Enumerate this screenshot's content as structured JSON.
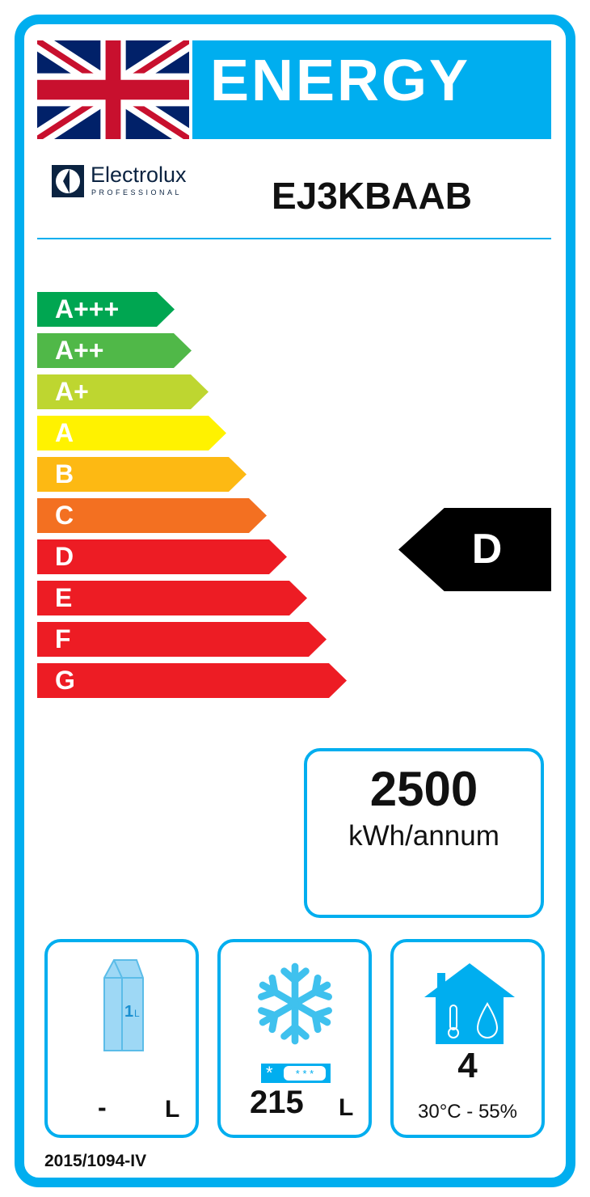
{
  "header": {
    "title": "ENERGY",
    "flag": "uk-flag-icon"
  },
  "brand": {
    "name": "Electrolux",
    "sub": "PROFESSIONAL",
    "logo": "electrolux-logo-icon"
  },
  "model": "EJ3KBAAB",
  "classes": [
    {
      "label": "A+++",
      "color": "#00A651"
    },
    {
      "label": "A++",
      "color": "#50B848"
    },
    {
      "label": "A+",
      "color": "#BED630"
    },
    {
      "label": "A",
      "color": "#FFF200"
    },
    {
      "label": "B",
      "color": "#FDB913"
    },
    {
      "label": "C",
      "color": "#F37021"
    },
    {
      "label": "D",
      "color": "#ED1C24"
    },
    {
      "label": "E",
      "color": "#ED1C24"
    },
    {
      "label": "F",
      "color": "#ED1C24"
    },
    {
      "label": "G",
      "color": "#ED1C24"
    }
  ],
  "rating": "D",
  "consumption": {
    "value": "2500",
    "unit": "kWh/annum"
  },
  "chilled": {
    "value": "-",
    "unit": "L",
    "icon": "milk-carton-icon",
    "icon_text": "1L"
  },
  "frozen": {
    "value": "215",
    "unit": "L",
    "icon": "snowflake-icon"
  },
  "climate": {
    "class": "4",
    "conditions": "30°C - 55%",
    "icon": "house-climate-icon"
  },
  "regulation": "2015/1094-IV",
  "accent": "#00AEEF"
}
